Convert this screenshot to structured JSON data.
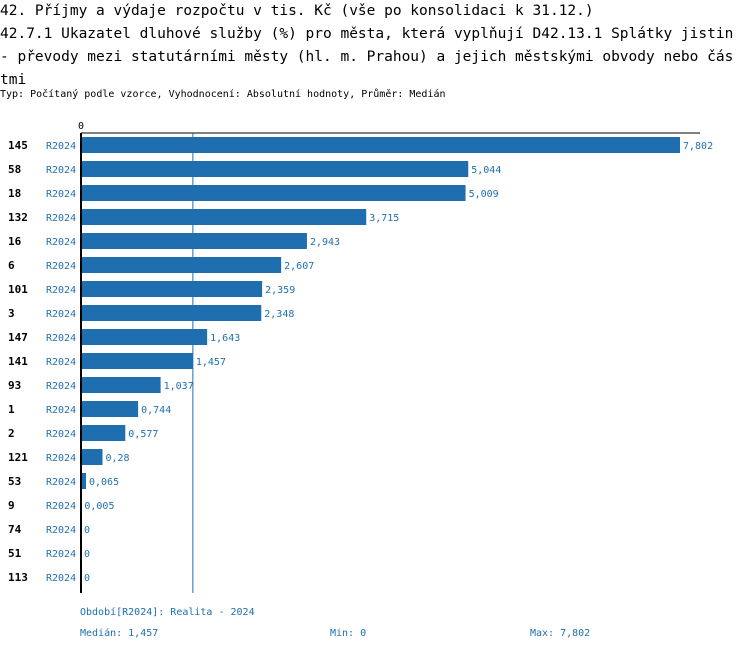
{
  "header": {
    "title": "42. Příjmy a výdaje rozpočtu v tis. Kč (vše po konsolidaci k 31.12.)\n42.7.1 Ukazatel dluhové služby (%) pro města, která vyplňují D42.13.1 Splátky jistin - převody mezi statutárními městy (hl. m. Prahou) a jejich městskými obvody nebo částmi",
    "subtitle": "Typ: Počítaný podle vzorce, Vyhodnocení: Absolutní hodnoty, Průměr: Medián"
  },
  "chart_data": {
    "type": "bar",
    "orientation": "horizontal",
    "x_axis_zero_label": "0",
    "xlim": [
      0,
      7.802
    ],
    "series_label": "R2024",
    "bar_color": "#1f6fb0",
    "rows": [
      {
        "id": "145",
        "series": "R2024",
        "value": 7.802,
        "label": "7,802"
      },
      {
        "id": "58",
        "series": "R2024",
        "value": 5.044,
        "label": "5,044"
      },
      {
        "id": "18",
        "series": "R2024",
        "value": 5.009,
        "label": "5,009"
      },
      {
        "id": "132",
        "series": "R2024",
        "value": 3.715,
        "label": "3,715"
      },
      {
        "id": "16",
        "series": "R2024",
        "value": 2.943,
        "label": "2,943"
      },
      {
        "id": "6",
        "series": "R2024",
        "value": 2.607,
        "label": "2,607"
      },
      {
        "id": "101",
        "series": "R2024",
        "value": 2.359,
        "label": "2,359"
      },
      {
        "id": "3",
        "series": "R2024",
        "value": 2.348,
        "label": "2,348"
      },
      {
        "id": "147",
        "series": "R2024",
        "value": 1.643,
        "label": "1,643"
      },
      {
        "id": "141",
        "series": "R2024",
        "value": 1.457,
        "label": "1,457"
      },
      {
        "id": "93",
        "series": "R2024",
        "value": 1.037,
        "label": "1,037"
      },
      {
        "id": "1",
        "series": "R2024",
        "value": 0.744,
        "label": "0,744"
      },
      {
        "id": "2",
        "series": "R2024",
        "value": 0.577,
        "label": "0,577"
      },
      {
        "id": "121",
        "series": "R2024",
        "value": 0.28,
        "label": "0,28"
      },
      {
        "id": "53",
        "series": "R2024",
        "value": 0.065,
        "label": "0,065"
      },
      {
        "id": "9",
        "series": "R2024",
        "value": 0.005,
        "label": "0,005"
      },
      {
        "id": "74",
        "series": "R2024",
        "value": 0,
        "label": "0"
      },
      {
        "id": "51",
        "series": "R2024",
        "value": 0,
        "label": "0"
      },
      {
        "id": "113",
        "series": "R2024",
        "value": 0,
        "label": "0"
      }
    ],
    "median_value": 1.457
  },
  "footer": {
    "period": "Období[R2024]: Realita - 2024",
    "median": "Medián: 1,457",
    "min": "Min: 0",
    "max": "Max: 7,802"
  }
}
